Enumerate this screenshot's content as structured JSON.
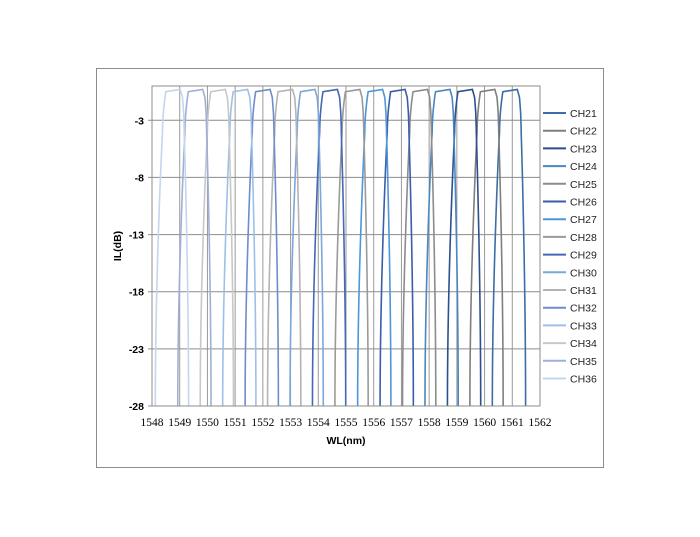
{
  "chart_data": {
    "type": "line",
    "title": "",
    "xlabel": "WL(nm)",
    "ylabel": "IL(dB)",
    "xlim": [
      1548,
      1562
    ],
    "ylim": [
      -28,
      0
    ],
    "xticks": [
      "1548",
      "1549",
      "1550",
      "1551",
      "1552",
      "1553",
      "1554",
      "1555",
      "1556",
      "1557",
      "1558",
      "1559",
      "1560",
      "1561",
      "1562"
    ],
    "yticks": [
      "-3",
      "-8",
      "-13",
      "-18",
      "-23",
      "-28"
    ],
    "grid": true,
    "legend_position": "right",
    "series": [
      {
        "name": "CH21",
        "color": "#3c6ea6",
        "x": [
          1560.28,
          1560.54,
          1560.66,
          1561.18,
          1561.26,
          1561.32,
          1561.48
        ],
        "y": [
          -28,
          -4,
          -0.5,
          -0.3,
          -1,
          -4,
          -28
        ]
      },
      {
        "name": "CH22",
        "color": "#7f7f7f",
        "x": [
          1559.47,
          1559.73,
          1559.85,
          1560.37,
          1560.45,
          1560.51,
          1560.67
        ],
        "y": [
          -28,
          -4,
          -0.5,
          -0.3,
          -1,
          -4,
          -28
        ]
      },
      {
        "name": "CH23",
        "color": "#2e4f8e",
        "x": [
          1558.66,
          1558.92,
          1559.04,
          1559.56,
          1559.64,
          1559.7,
          1559.86
        ],
        "y": [
          -28,
          -4,
          -0.5,
          -0.3,
          -1,
          -4,
          -28
        ]
      },
      {
        "name": "CH24",
        "color": "#4a86c0",
        "x": [
          1557.85,
          1558.11,
          1558.23,
          1558.75,
          1558.83,
          1558.89,
          1559.05
        ],
        "y": [
          -28,
          -4,
          -0.5,
          -0.3,
          -1,
          -4,
          -28
        ]
      },
      {
        "name": "CH25",
        "color": "#8c8c8c",
        "x": [
          1557.04,
          1557.3,
          1557.42,
          1557.94,
          1558.02,
          1558.08,
          1558.24
        ],
        "y": [
          -28,
          -4,
          -0.5,
          -0.3,
          -1,
          -4,
          -28
        ]
      },
      {
        "name": "CH26",
        "color": "#3a5ea8",
        "x": [
          1556.23,
          1556.49,
          1556.61,
          1557.13,
          1557.21,
          1557.27,
          1557.43
        ],
        "y": [
          -28,
          -4,
          -0.5,
          -0.3,
          -1,
          -4,
          -28
        ]
      },
      {
        "name": "CH27",
        "color": "#4f95d8",
        "x": [
          1555.42,
          1555.68,
          1555.8,
          1556.32,
          1556.4,
          1556.46,
          1556.62
        ],
        "y": [
          -28,
          -4,
          -0.5,
          -0.3,
          -1,
          -4,
          -28
        ]
      },
      {
        "name": "CH28",
        "color": "#9a9a9a",
        "x": [
          1554.6,
          1554.86,
          1554.98,
          1555.5,
          1555.58,
          1555.64,
          1555.8
        ],
        "y": [
          -28,
          -4,
          -0.5,
          -0.3,
          -1,
          -4,
          -28
        ]
      },
      {
        "name": "CH29",
        "color": "#4468b4",
        "x": [
          1553.79,
          1554.05,
          1554.17,
          1554.69,
          1554.77,
          1554.83,
          1554.99
        ],
        "y": [
          -28,
          -4,
          -0.5,
          -0.3,
          -1,
          -4,
          -28
        ]
      },
      {
        "name": "CH30",
        "color": "#7aa8dc",
        "x": [
          1552.98,
          1553.24,
          1553.36,
          1553.88,
          1553.96,
          1554.02,
          1554.18
        ],
        "y": [
          -28,
          -4,
          -0.5,
          -0.3,
          -1,
          -4,
          -28
        ]
      },
      {
        "name": "CH31",
        "color": "#b4b4b4",
        "x": [
          1552.17,
          1552.43,
          1552.55,
          1553.07,
          1553.15,
          1553.21,
          1553.37
        ],
        "y": [
          -28,
          -4,
          -0.5,
          -0.3,
          -1,
          -4,
          -28
        ]
      },
      {
        "name": "CH32",
        "color": "#6f8ccc",
        "x": [
          1551.36,
          1551.62,
          1551.74,
          1552.26,
          1552.34,
          1552.4,
          1552.56
        ],
        "y": [
          -28,
          -4,
          -0.5,
          -0.3,
          -1,
          -4,
          -28
        ]
      },
      {
        "name": "CH33",
        "color": "#9dc0e8",
        "x": [
          1550.55,
          1550.81,
          1550.93,
          1551.45,
          1551.53,
          1551.59,
          1551.75
        ],
        "y": [
          -28,
          -4,
          -0.5,
          -0.3,
          -1,
          -4,
          -28
        ]
      },
      {
        "name": "CH34",
        "color": "#c8c8c8",
        "x": [
          1549.74,
          1550.0,
          1550.12,
          1550.64,
          1550.72,
          1550.78,
          1550.94
        ],
        "y": [
          -28,
          -4,
          -0.5,
          -0.3,
          -1,
          -4,
          -28
        ]
      },
      {
        "name": "CH35",
        "color": "#9fb0d8",
        "x": [
          1548.93,
          1549.19,
          1549.31,
          1549.83,
          1549.91,
          1549.97,
          1550.13
        ],
        "y": [
          -28,
          -4,
          -0.5,
          -0.3,
          -1,
          -4,
          -28
        ]
      },
      {
        "name": "CH36",
        "color": "#c3d6ef",
        "x": [
          1548.12,
          1548.38,
          1548.5,
          1549.02,
          1549.1,
          1549.16,
          1549.32
        ],
        "y": [
          -28,
          -4,
          -0.5,
          -0.3,
          -1,
          -4,
          -28
        ]
      }
    ]
  }
}
